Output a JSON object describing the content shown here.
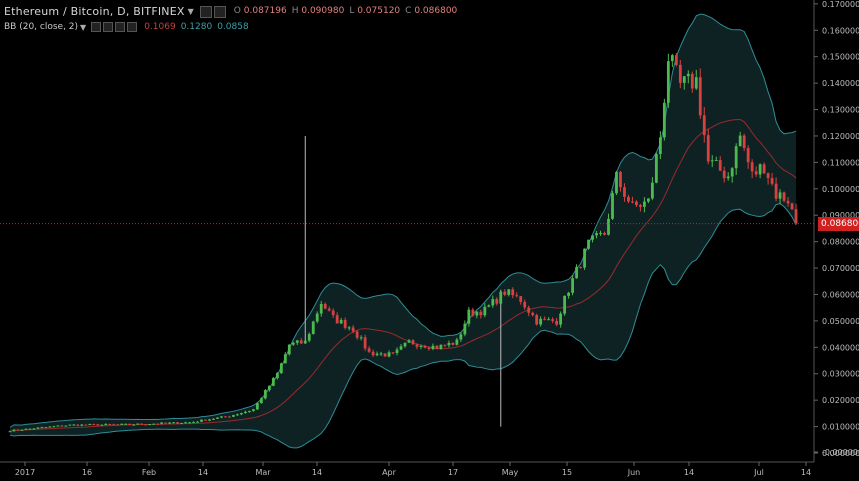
{
  "header": {
    "title": "Ethereum / Bitcoin, D, BITFINEX",
    "ohlc": [
      {
        "label": "O",
        "value": "0.087196"
      },
      {
        "label": "H",
        "value": "0.090980"
      },
      {
        "label": "L",
        "value": "0.075120"
      },
      {
        "label": "C",
        "value": "0.086800"
      }
    ]
  },
  "indicator": {
    "name": "BB (20, close, 2)",
    "values": [
      "0.1069",
      "0.1280",
      "0.0858"
    ]
  },
  "last_price_label": "0.086800",
  "colors": {
    "background": "#000000",
    "up": "#4cba4c",
    "down": "#d94141",
    "basis": "#9a2a2a",
    "band": "#2e8c96",
    "band_fill": "#0e2224",
    "last_price": "#d02020"
  },
  "chart_data": {
    "type": "candlestick",
    "title": "Ethereum / Bitcoin, D, BITFINEX",
    "x_ticks": [
      "2017",
      "16",
      "Feb",
      "14",
      "Mar",
      "14",
      "Apr",
      "17",
      "May",
      "15",
      "Jun",
      "14",
      "Jul",
      "14"
    ],
    "y_ticks": [
      "0.170000",
      "0.160000",
      "0.150000",
      "0.140000",
      "0.130000",
      "0.120000",
      "0.110000",
      "0.100000",
      "0.090000",
      "0.080000",
      "0.070000",
      "0.060000",
      "0.050000",
      "0.040000",
      "0.030000",
      "0.020000",
      "0.010000",
      "0.000000",
      "-0.000000"
    ],
    "ylim": [
      -0.0005,
      0.17
    ],
    "last_price": 0.0868,
    "anchors": [
      {
        "day": 0,
        "close": 0.0085
      },
      {
        "day": 15,
        "close": 0.0106
      },
      {
        "day": 30,
        "close": 0.0108
      },
      {
        "day": 45,
        "close": 0.0116
      },
      {
        "day": 55,
        "close": 0.014
      },
      {
        "day": 61,
        "close": 0.0165
      },
      {
        "day": 67,
        "close": 0.03
      },
      {
        "day": 70,
        "close": 0.041
      },
      {
        "day": 74,
        "close": 0.042
      },
      {
        "day": 78,
        "close": 0.057
      },
      {
        "day": 81,
        "close": 0.051
      },
      {
        "day": 86,
        "close": 0.047
      },
      {
        "day": 90,
        "close": 0.038
      },
      {
        "day": 96,
        "close": 0.037
      },
      {
        "day": 100,
        "close": 0.042
      },
      {
        "day": 107,
        "close": 0.04
      },
      {
        "day": 112,
        "close": 0.042
      },
      {
        "day": 115,
        "close": 0.053
      },
      {
        "day": 119,
        "close": 0.054
      },
      {
        "day": 124,
        "close": 0.061
      },
      {
        "day": 128,
        "close": 0.058
      },
      {
        "day": 132,
        "close": 0.05
      },
      {
        "day": 137,
        "close": 0.05
      },
      {
        "day": 140,
        "close": 0.062
      },
      {
        "day": 145,
        "close": 0.079
      },
      {
        "day": 149,
        "close": 0.083
      },
      {
        "day": 152,
        "close": 0.104
      },
      {
        "day": 156,
        "close": 0.093
      },
      {
        "day": 160,
        "close": 0.095
      },
      {
        "day": 163,
        "close": 0.12
      },
      {
        "day": 165,
        "close": 0.15
      },
      {
        "day": 168,
        "close": 0.139
      },
      {
        "day": 172,
        "close": 0.141
      },
      {
        "day": 175,
        "close": 0.11
      },
      {
        "day": 180,
        "close": 0.105
      },
      {
        "day": 183,
        "close": 0.12
      },
      {
        "day": 186,
        "close": 0.105
      },
      {
        "day": 189,
        "close": 0.109
      },
      {
        "day": 192,
        "close": 0.098
      },
      {
        "day": 195,
        "close": 0.096
      },
      {
        "day": 197,
        "close": 0.0868
      }
    ],
    "spikes": [
      {
        "day": 74,
        "high": 0.12
      },
      {
        "day": 123,
        "low": 0.01
      }
    ]
  }
}
